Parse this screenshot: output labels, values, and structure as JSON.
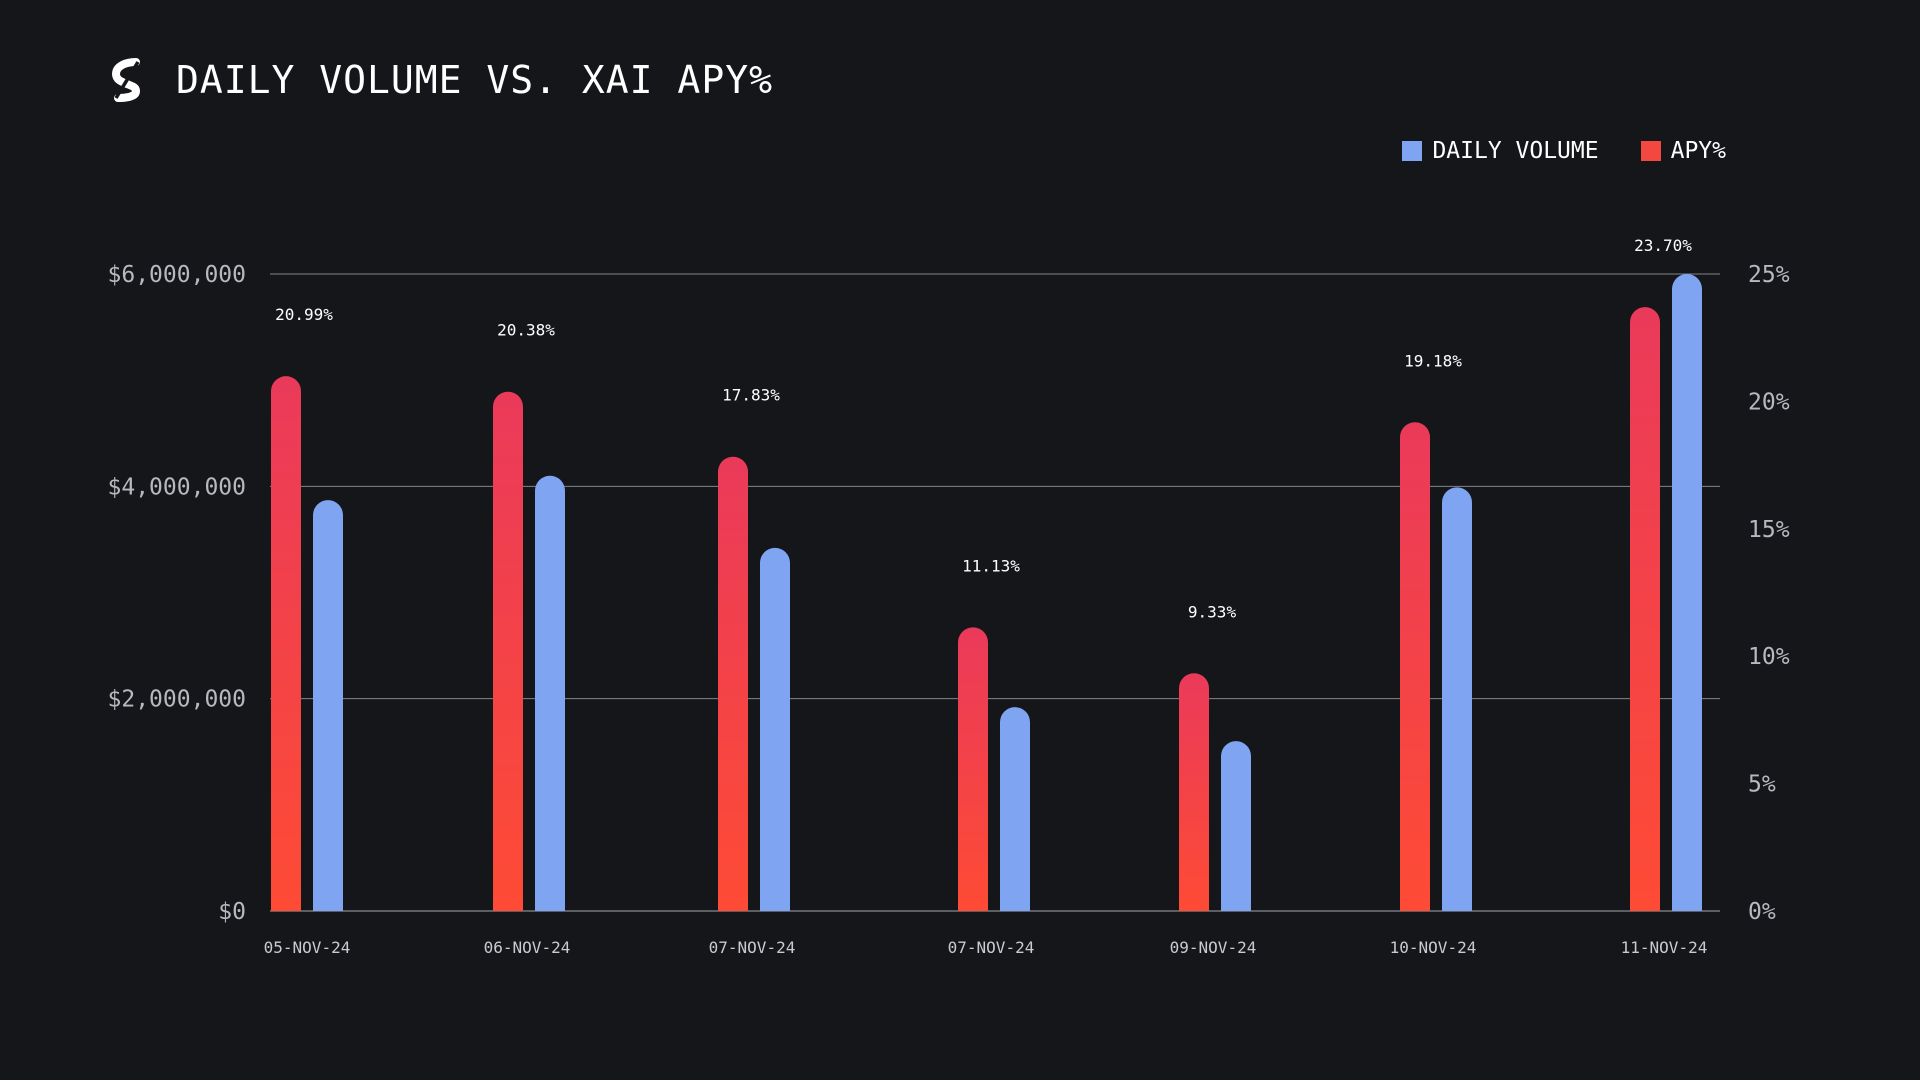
{
  "header": {
    "title": "DAILY VOLUME VS. XAI APY%",
    "logo_icon": "stake-logo-icon"
  },
  "legend": [
    {
      "label": "DAILY VOLUME",
      "color": "#7fa4f1"
    },
    {
      "label": "APY%",
      "color": "#f3483f"
    }
  ],
  "chart_data": {
    "type": "bar",
    "categories": [
      "05-NOV-24",
      "06-NOV-24",
      "07-NOV-24",
      "07-NOV-24",
      "09-NOV-24",
      "10-NOV-24",
      "11-NOV-24"
    ],
    "series": [
      {
        "name": "APY%",
        "axis": "right",
        "values": [
          20.99,
          20.38,
          17.83,
          11.13,
          9.33,
          19.18,
          23.7
        ],
        "value_labels": [
          "20.99%",
          "20.38%",
          "17.83%",
          "11.13%",
          "9.33%",
          "19.18%",
          "23.70%"
        ],
        "color_top": "#ea3a5a",
        "color_bottom": "#fe4b35"
      },
      {
        "name": "DAILY VOLUME",
        "axis": "left",
        "values": [
          3870000,
          4100000,
          3420000,
          1920000,
          1600000,
          3990000,
          6000000
        ],
        "color": "#7fa4f1"
      }
    ],
    "y_left": {
      "ticks": [
        0,
        2000000,
        4000000,
        6000000
      ],
      "tick_labels": [
        "$0",
        "$2,000,000",
        "$4,000,000",
        "$6,000,000"
      ],
      "ylim": [
        0,
        6000000
      ]
    },
    "y_right": {
      "ticks": [
        0,
        5,
        10,
        15,
        20,
        25
      ],
      "tick_labels": [
        "0%",
        "5%",
        "10%",
        "15%",
        "20%",
        "25%"
      ],
      "ylim": [
        0,
        25
      ]
    },
    "grid": true
  }
}
